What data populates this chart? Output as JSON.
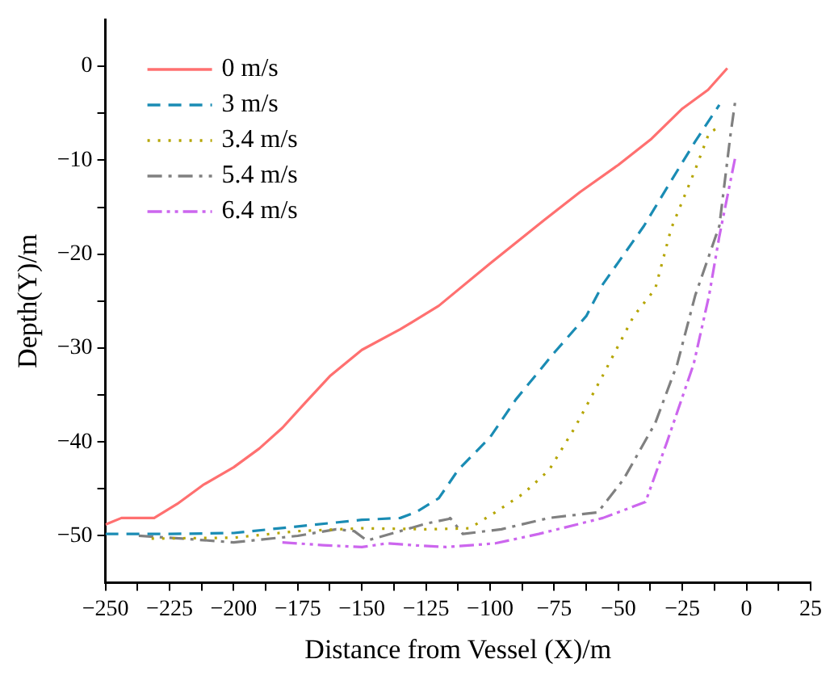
{
  "chart_data": {
    "type": "line",
    "xlabel": "Distance from Vessel (X)/m",
    "ylabel": "Depth(Y)/m",
    "xlim": [
      -250,
      25
    ],
    "xticks": [
      -250,
      {
        "value": -237.5,
        "label": null
      },
      -225,
      {
        "value": -212.5,
        "label": null
      },
      -200,
      {
        "value": -187.5,
        "label": null
      },
      -175,
      {
        "value": -162.5,
        "label": null
      },
      -150,
      {
        "value": -137.5,
        "label": null
      },
      -125,
      {
        "value": -112.5,
        "label": null
      },
      -100,
      {
        "value": -87.5,
        "label": null
      },
      -75,
      {
        "value": -62.5,
        "label": null
      },
      -50,
      {
        "value": -37.5,
        "label": null
      },
      -25,
      {
        "value": -12.5,
        "label": null
      },
      0,
      {
        "value": 12.5,
        "label": null
      },
      25
    ],
    "ylim": [
      -55,
      5
    ],
    "yticks": [
      -50,
      {
        "value": -45,
        "label": null
      },
      -40,
      {
        "value": -35,
        "label": null
      },
      -30,
      {
        "value": -25,
        "label": null
      },
      -20,
      {
        "value": -15,
        "label": null
      },
      -10,
      {
        "value": -5,
        "label": null
      },
      0
    ],
    "grid": false,
    "legend": "top left",
    "marker": "none",
    "series": [
      {
        "name": "0 m/s",
        "color": "#ff7070",
        "line_style": "solid",
        "x": [
          -250,
          -243.75,
          -231,
          -222,
          -212,
          -200,
          -190,
          -181,
          -172,
          -162.5,
          -150,
          -135,
          -120,
          -100,
          -79,
          -65,
          -50,
          -37,
          -25,
          -15,
          -7.5
        ],
        "values": [
          -48.8,
          -48.1,
          -48.1,
          -46.6,
          -44.6,
          -42.7,
          -40.7,
          -38.5,
          -35.8,
          -33,
          -30.2,
          -28,
          -25.5,
          -21,
          -16.4,
          -13.4,
          -10.5,
          -7.7,
          -4.5,
          -2.5,
          -0.2
        ]
      },
      {
        "name": "3 m/s",
        "color": "#1a8cb4",
        "line_style": "dashed",
        "x": [
          -250,
          -225,
          -200,
          -175,
          -150,
          -135,
          -129,
          -120,
          -112.5,
          -100,
          -90,
          -75,
          -62.5,
          -56,
          -40,
          -29.4,
          -20,
          -10.6
        ],
        "values": [
          -49.8,
          -49.8,
          -49.7,
          -49,
          -48.3,
          -48.1,
          -47.5,
          -46,
          -43,
          -39.5,
          -35.5,
          -30.5,
          -26.6,
          -23.2,
          -17,
          -12.2,
          -8,
          -4.1
        ]
      },
      {
        "name": "3.4 m/s",
        "color": "#b5a500",
        "line_style": "dotted",
        "x": [
          -232,
          -200,
          -175,
          -150,
          -125,
          -108,
          -98,
          -87,
          -77,
          -67,
          -56,
          -44,
          -35.6,
          -29.4,
          -20,
          -14.6,
          -11
        ],
        "values": [
          -50.3,
          -50.2,
          -49.5,
          -49.2,
          -49.3,
          -49.2,
          -47.5,
          -45.5,
          -43,
          -38.5,
          -32.9,
          -26.6,
          -23.7,
          -17.3,
          -11,
          -7.1,
          -6.5
        ]
      },
      {
        "name": "5.4 m/s",
        "color": "#808080",
        "line_style": "dashdot",
        "x": [
          -237,
          -220,
          -200,
          -175,
          -160,
          -153,
          -148,
          -135,
          -125,
          -116,
          -115.6,
          -110.6,
          -95.6,
          -77,
          -58,
          -48,
          -35.6,
          -27,
          -20,
          -10.6,
          -6.3,
          -4.4
        ],
        "values": [
          -50,
          -50.3,
          -50.7,
          -50,
          -49.3,
          -49.5,
          -50.5,
          -49.5,
          -48.7,
          -48.2,
          -48.1,
          -49.8,
          -49.3,
          -48.1,
          -47.5,
          -44,
          -38,
          -31.7,
          -24.4,
          -17,
          -7.4,
          -3.7
        ]
      },
      {
        "name": "6.4 m/s",
        "color": "#cc66ee",
        "line_style": "dashdotdot",
        "x": [
          -181,
          -165,
          -150,
          -140,
          -130,
          -117,
          -98,
          -81,
          -56,
          -39.4,
          -31,
          -20.6,
          -14.6,
          -10.6,
          -4.4
        ],
        "values": [
          -50.7,
          -51,
          -51.2,
          -50.8,
          -51,
          -51.2,
          -50.8,
          -49.8,
          -48.1,
          -46.4,
          -40,
          -31.7,
          -24.4,
          -18.1,
          -9.7
        ]
      }
    ]
  }
}
